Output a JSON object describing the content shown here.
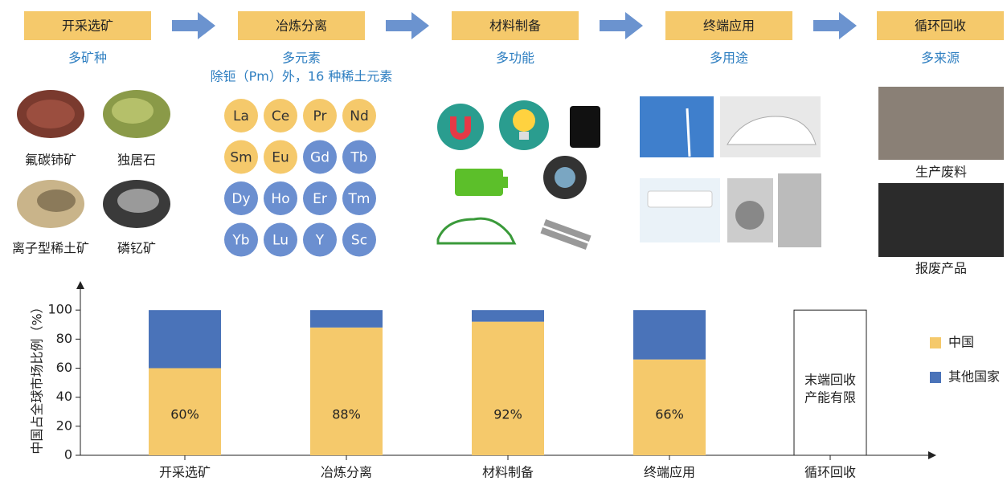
{
  "stages": [
    {
      "title": "开采选矿",
      "subtitle": "多矿种"
    },
    {
      "title": "冶炼分离",
      "subtitle": "多元素"
    },
    {
      "title": "材料制备",
      "subtitle": "多功能"
    },
    {
      "title": "终端应用",
      "subtitle": "多用途"
    },
    {
      "title": "循环回收",
      "subtitle": "多来源"
    }
  ],
  "element_note": "除钷（Pm）外，16 种稀土元素",
  "minerals": [
    "氟碳铈矿",
    "独居石",
    "离子型稀土矿",
    "磷钇矿"
  ],
  "elements": {
    "light": [
      "La",
      "Ce",
      "Pr",
      "Nd",
      "Sm",
      "Eu"
    ],
    "heavy": [
      "Gd",
      "Tb",
      "Dy",
      "Ho",
      "Er",
      "Tm",
      "Yb",
      "Lu",
      "Y",
      "Sc"
    ]
  },
  "recycling": [
    "生产废料",
    "报废产品"
  ],
  "chart_data": {
    "type": "stacked_bar",
    "y_label": "中国占全球市场比例（%）",
    "categories": [
      "开采选矿",
      "冶炼分离",
      "材料制备",
      "终端应用",
      "循环回收"
    ],
    "series": [
      {
        "name": "中国",
        "color": "#f5c96b",
        "values": [
          60,
          88,
          92,
          66,
          null
        ],
        "value_labels": [
          "60%",
          "88%",
          "92%",
          "66%",
          null
        ]
      },
      {
        "name": "其他国家",
        "color": "#4a73b9",
        "values": [
          40,
          12,
          8,
          34,
          null
        ]
      }
    ],
    "annotation": [
      "末端回收",
      "产能有限"
    ],
    "ylim": [
      0,
      120
    ],
    "yticks": [
      0,
      20,
      40,
      60,
      80,
      100
    ],
    "legend": "right"
  }
}
